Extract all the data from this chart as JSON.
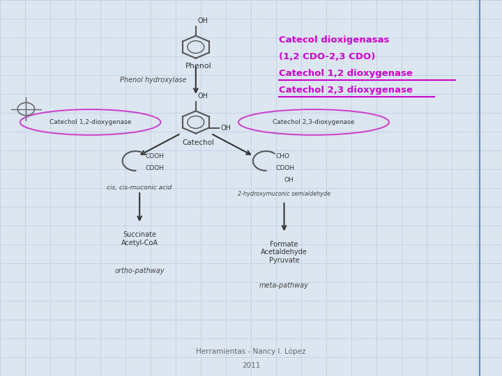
{
  "bg_color": "#dce6f1",
  "grid_color": "#b8cce4",
  "title_lines": [
    "Catecol dioxigenasas",
    "(1,2 CDO-2,3 CDO)",
    "Catechol 1,2 dioxygenase",
    "Catechol 2,3 dioxygenase"
  ],
  "title_color": "#cc00cc",
  "footer_line1": "Herramientas - Nancy I. López",
  "footer_line2": "2011",
  "footer_color": "#666666",
  "arrow_color": "#333333",
  "ellipse_color": "#cc44cc",
  "text_color": "#333333",
  "italic_color": "#444444",
  "struct_color": "#555555",
  "right_line_color": "#4472c4"
}
